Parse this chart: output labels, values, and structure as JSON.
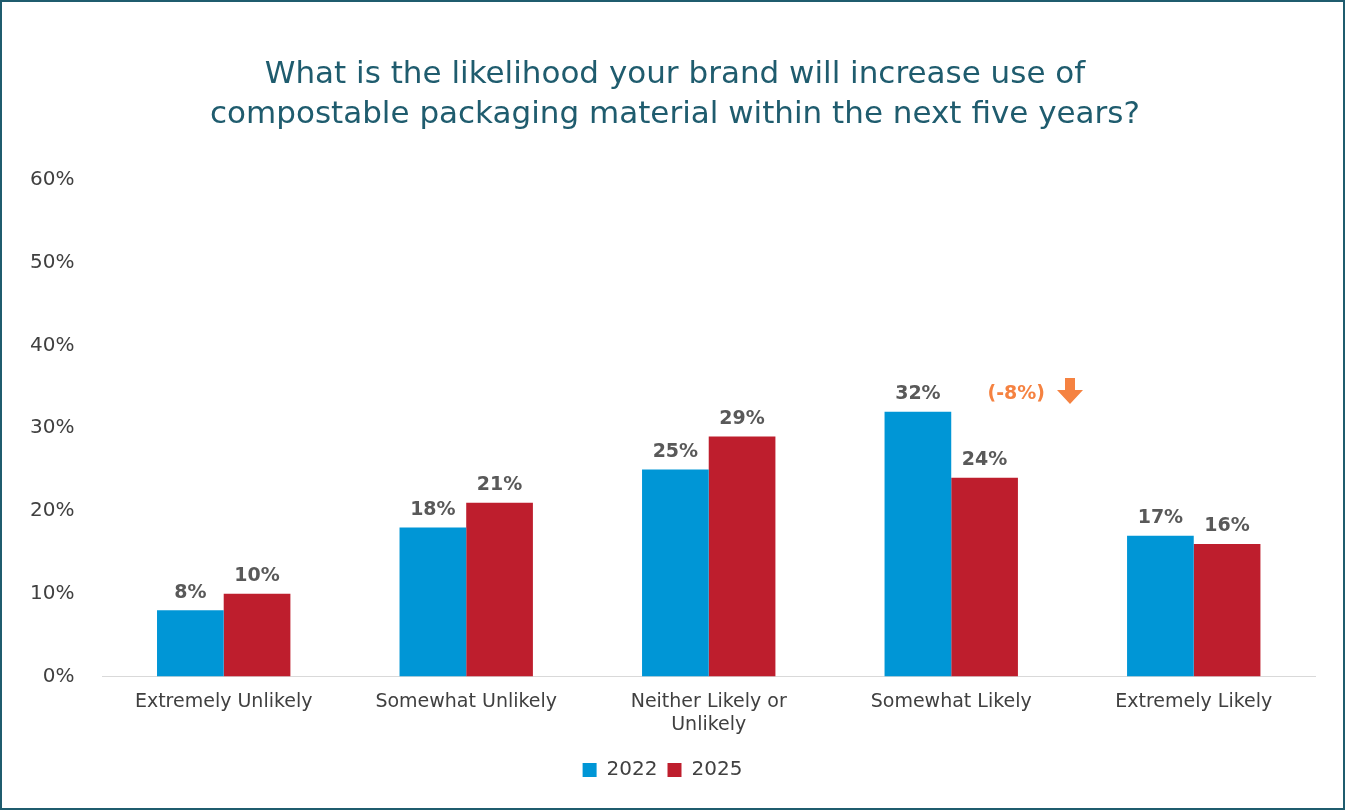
{
  "chart_data": {
    "type": "bar",
    "title": "What is the likelihood your brand will increase use of compostable packaging material within the next five years?",
    "categories": [
      "Extremely Unlikely",
      "Somewhat Unlikely",
      "Neither Likely or Unlikely",
      "Somewhat Likely",
      "Extremely Likely"
    ],
    "series": [
      {
        "name": "2022",
        "color": "#0096d6",
        "values": [
          8,
          18,
          25,
          32,
          17
        ],
        "value_labels": [
          "8%",
          "18%",
          "25%",
          "32%",
          "17%"
        ]
      },
      {
        "name": "2025",
        "color": "#be1e2d",
        "values": [
          10,
          21,
          29,
          24,
          16
        ],
        "value_labels": [
          "10%",
          "21%",
          "29%",
          "24%",
          "16%"
        ]
      }
    ],
    "ylim": [
      0,
      60
    ],
    "yticks": [
      {
        "value": 0,
        "label": "0%"
      },
      {
        "value": 10,
        "label": "10%"
      },
      {
        "value": 20,
        "label": "20%"
      },
      {
        "value": 30,
        "label": "30%"
      },
      {
        "value": 40,
        "label": "40%"
      },
      {
        "value": 50,
        "label": "50%"
      },
      {
        "value": 60,
        "label": "60%"
      }
    ],
    "grid": false,
    "legend": "bottom",
    "annotations": [
      {
        "text": "(-8%)",
        "x": "Somewhat Likely",
        "y": 32
      }
    ]
  }
}
